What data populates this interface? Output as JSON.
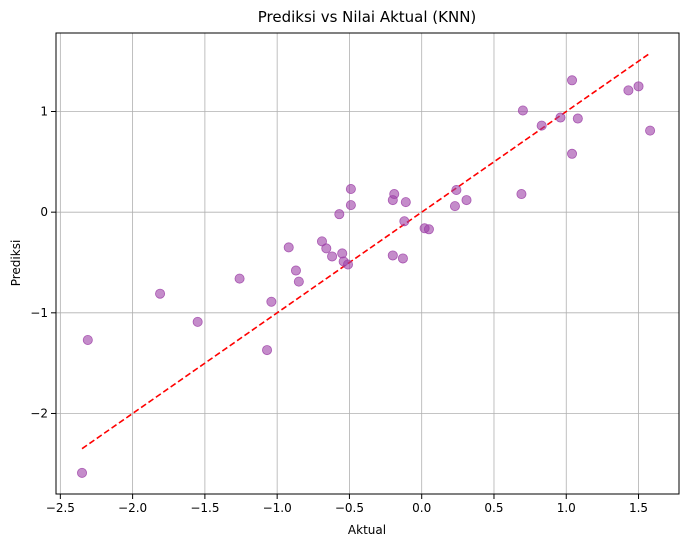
{
  "chart_data": {
    "type": "scatter",
    "title": "Prediksi vs Nilai Aktual (KNN)",
    "xlabel": "Aktual",
    "ylabel": "Prediksi",
    "xlim": [
      -2.53,
      1.78
    ],
    "ylim": [
      -2.8,
      1.78
    ],
    "xticks": [
      -2.5,
      -2.0,
      -1.5,
      -1.0,
      -0.5,
      0.0,
      0.5,
      1.0,
      1.5
    ],
    "xtick_labels": [
      "−2.5",
      "−2.0",
      "−1.5",
      "−1.0",
      "−0.5",
      "0.0",
      "0.5",
      "1.0",
      "1.5"
    ],
    "yticks": [
      -2,
      -1,
      0,
      1
    ],
    "ytick_labels": [
      "−2",
      "−1",
      "0",
      "1"
    ],
    "grid": true,
    "colors": {
      "points": "#9c3fa6",
      "reference_line": "#ff0000",
      "grid": "#b0b0b0"
    },
    "series": [
      {
        "type": "scatter",
        "points": [
          [
            -2.35,
            -2.59
          ],
          [
            -2.31,
            -1.27
          ],
          [
            -1.81,
            -0.81
          ],
          [
            -1.55,
            -1.09
          ],
          [
            -1.26,
            -0.66
          ],
          [
            -1.07,
            -1.37
          ],
          [
            -1.04,
            -0.89
          ],
          [
            -0.92,
            -0.35
          ],
          [
            -0.87,
            -0.58
          ],
          [
            -0.85,
            -0.69
          ],
          [
            -0.69,
            -0.29
          ],
          [
            -0.66,
            -0.36
          ],
          [
            -0.62,
            -0.44
          ],
          [
            -0.57,
            -0.02
          ],
          [
            -0.55,
            -0.41
          ],
          [
            -0.54,
            -0.49
          ],
          [
            -0.51,
            -0.52
          ],
          [
            -0.49,
            0.07
          ],
          [
            -0.49,
            0.23
          ],
          [
            -0.2,
            0.12
          ],
          [
            -0.19,
            0.18
          ],
          [
            -0.2,
            -0.43
          ],
          [
            -0.13,
            -0.46
          ],
          [
            -0.12,
            -0.09
          ],
          [
            -0.11,
            0.1
          ],
          [
            0.02,
            -0.16
          ],
          [
            0.05,
            -0.17
          ],
          [
            0.23,
            0.06
          ],
          [
            0.24,
            0.22
          ],
          [
            0.31,
            0.12
          ],
          [
            0.69,
            0.18
          ],
          [
            0.7,
            1.01
          ],
          [
            0.83,
            0.86
          ],
          [
            0.96,
            0.94
          ],
          [
            1.04,
            0.58
          ],
          [
            1.04,
            1.31
          ],
          [
            1.08,
            0.93
          ],
          [
            1.43,
            1.21
          ],
          [
            1.5,
            1.25
          ],
          [
            1.58,
            0.81
          ]
        ]
      },
      {
        "type": "line",
        "style": "dashed",
        "points": [
          [
            -2.35,
            -2.35
          ],
          [
            1.58,
            1.58
          ]
        ]
      }
    ]
  }
}
